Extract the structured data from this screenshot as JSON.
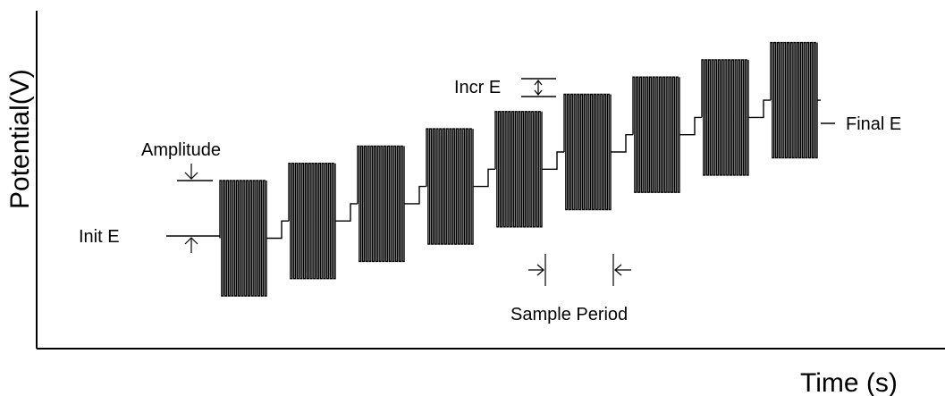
{
  "labels": {
    "y_axis": "Potential(V)",
    "x_axis": "Time (s)",
    "amplitude": "Amplitude",
    "init_e": "Init E",
    "incr_e": "Incr E",
    "final_e": "Final E",
    "sample_period": "Sample Period"
  },
  "chart_data": {
    "type": "line",
    "title": "",
    "xlabel": "Time (s)",
    "ylabel": "Potential(V)",
    "step_count": 9,
    "annotations": [
      "Amplitude",
      "Init E",
      "Incr E",
      "Final E",
      "Sample Period"
    ]
  }
}
